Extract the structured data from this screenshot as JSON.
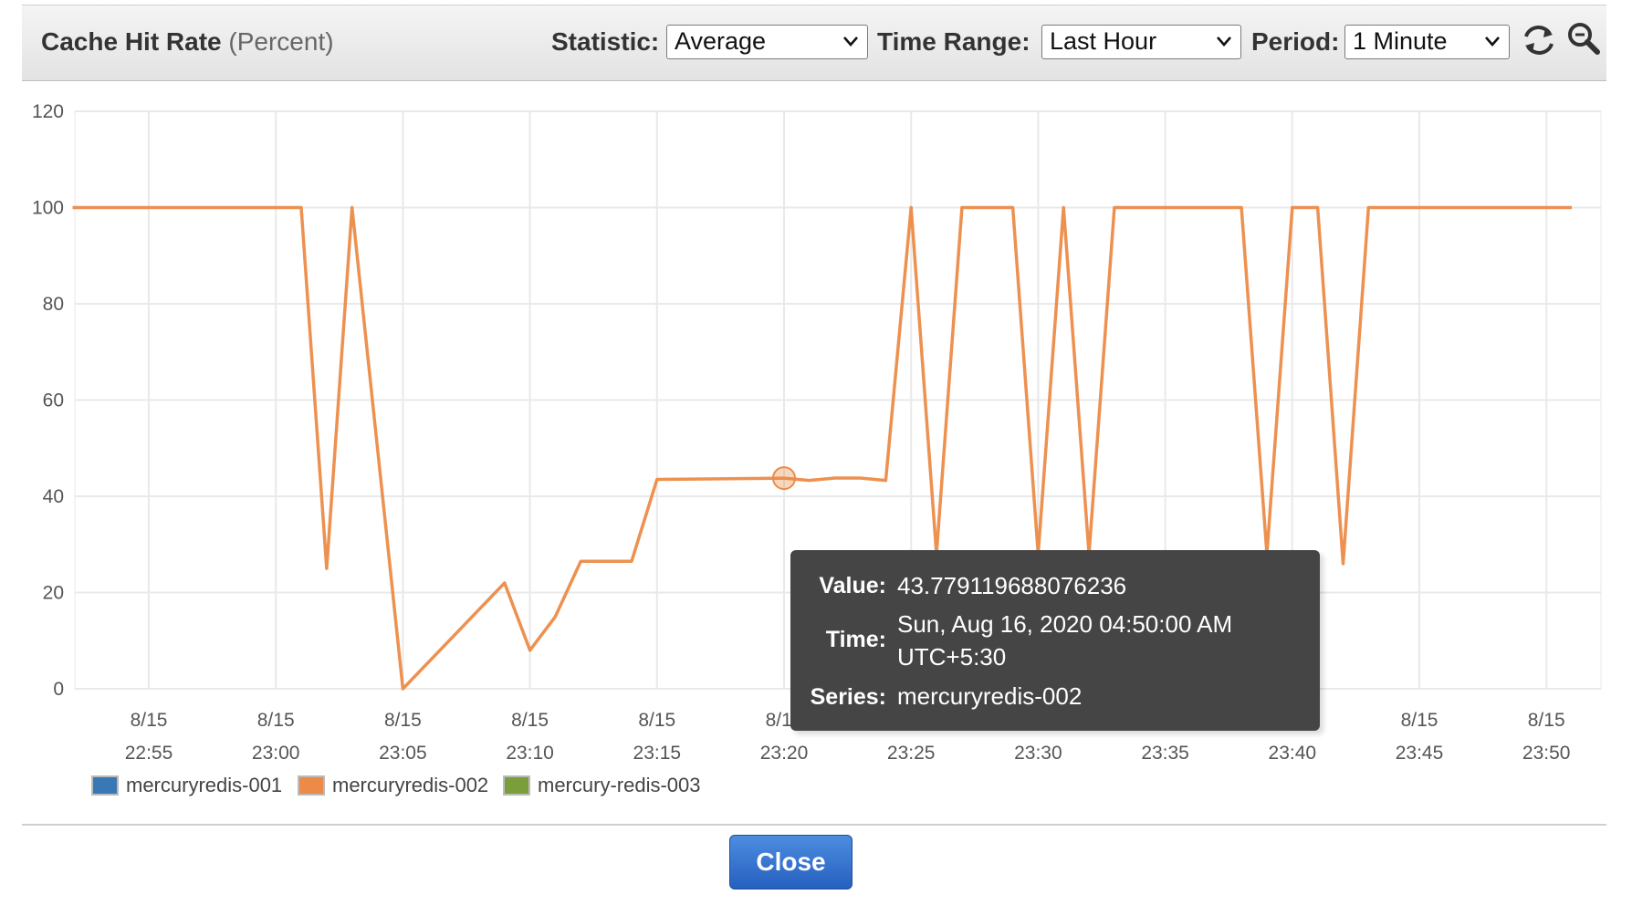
{
  "header": {
    "title": "Cache Hit Rate",
    "unit": "(Percent)",
    "statistic_label": "Statistic:",
    "statistic_value": "Average",
    "time_range_label": "Time Range:",
    "time_range_value": "Last Hour",
    "period_label": "Period:",
    "period_value": "1 Minute",
    "refresh_icon": "refresh-icon",
    "zoom_icon": "zoom-icon"
  },
  "tooltip": {
    "value_label": "Value:",
    "value": "43.779119688076236",
    "time_label": "Time:",
    "time_line1": "Sun, Aug 16, 2020 04:50:00 AM",
    "time_line2": "UTC+5:30",
    "series_label": "Series:",
    "series": "mercuryredis-002"
  },
  "footer": {
    "close_label": "Close"
  },
  "chart_data": {
    "type": "line",
    "ylim": [
      0,
      120
    ],
    "yticks": [
      0,
      20,
      40,
      60,
      80,
      100,
      120
    ],
    "grid": true,
    "legend_position": "bottom-left",
    "xticks": [
      {
        "date": "8/15",
        "time": "22:55"
      },
      {
        "date": "8/15",
        "time": "23:00"
      },
      {
        "date": "8/15",
        "time": "23:05"
      },
      {
        "date": "8/15",
        "time": "23:10"
      },
      {
        "date": "8/15",
        "time": "23:15"
      },
      {
        "date": "8/15",
        "time": "23:20"
      },
      {
        "date": "8/15",
        "time": "23:25"
      },
      {
        "date": "8/15",
        "time": "23:30"
      },
      {
        "date": "8/15",
        "time": "23:35"
      },
      {
        "date": "8/15",
        "time": "23:40"
      },
      {
        "date": "8/15",
        "time": "23:45"
      },
      {
        "date": "8/15",
        "time": "23:50"
      }
    ],
    "series": [
      {
        "name": "mercuryredis-001",
        "color": "#3a78b5",
        "points": []
      },
      {
        "name": "mercuryredis-002",
        "color": "#ec8b47",
        "points": [
          [
            "22:52",
            100
          ],
          [
            "23:01",
            100
          ],
          [
            "23:02",
            25
          ],
          [
            "23:03",
            100
          ],
          [
            "23:05",
            0
          ],
          [
            "23:09",
            22
          ],
          [
            "23:10",
            8
          ],
          [
            "23:11",
            15
          ],
          [
            "23:12",
            26.5
          ],
          [
            "23:14",
            26.5
          ],
          [
            "23:15",
            43.5
          ],
          [
            "23:20",
            43.78
          ],
          [
            "23:21",
            43.3
          ],
          [
            "23:22",
            43.8
          ],
          [
            "23:23",
            43.8
          ],
          [
            "23:24",
            43.3
          ],
          [
            "23:25",
            100
          ],
          [
            "23:26",
            28
          ],
          [
            "23:27",
            100
          ],
          [
            "23:29",
            100
          ],
          [
            "23:30",
            28
          ],
          [
            "23:31",
            100
          ],
          [
            "23:32",
            28
          ],
          [
            "23:33",
            100
          ],
          [
            "23:38",
            100
          ],
          [
            "23:39",
            28
          ],
          [
            "23:40",
            100
          ],
          [
            "23:41",
            100
          ],
          [
            "23:42",
            26
          ],
          [
            "23:43",
            100
          ],
          [
            "23:51",
            100
          ]
        ]
      },
      {
        "name": "mercury-redis-003",
        "color": "#7a9f3a",
        "points": []
      }
    ],
    "highlight": {
      "series": "mercuryredis-002",
      "x": "23:20",
      "y": 43.779119688076236
    }
  }
}
